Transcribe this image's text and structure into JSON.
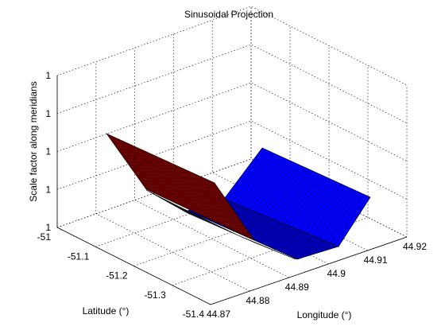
{
  "chart_data": {
    "type": "surface",
    "title": "Sinusoidal Projection",
    "xlabel": "Longitude (°)",
    "ylabel": "Latitude (°)",
    "zlabel": "Scale factor along meridians",
    "xlim": [
      44.87,
      44.92
    ],
    "ylim": [
      -51.4,
      -51.0
    ],
    "xticks": [
      "44.87",
      "44.88",
      "44.89",
      "44.9",
      "44.91",
      "44.92"
    ],
    "yticks": [
      "-51",
      "-51.1",
      "-51.2",
      "-51.3",
      "-51.4"
    ],
    "zticks": [
      "1",
      "1",
      "1",
      "1",
      "1"
    ],
    "grid": true,
    "series": [
      {
        "color": "#800000",
        "edge_color": "#000000",
        "surface": "folded sheet sloping down from high latitude edge to the longitude axis"
      },
      {
        "color": "#0000ff",
        "edge_color": "#000000",
        "surface": "folded sheet rising toward the right (higher longitude)"
      }
    ]
  }
}
